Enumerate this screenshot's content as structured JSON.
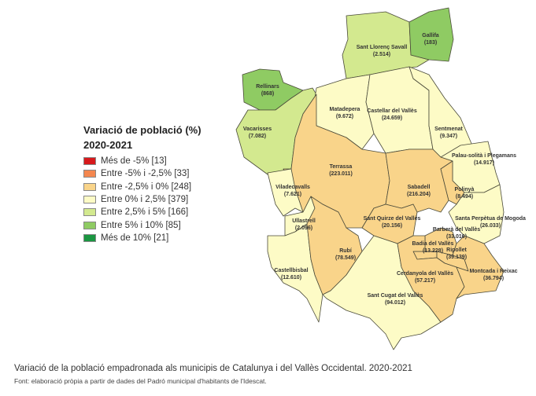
{
  "legend": {
    "title_line1": "Variació de població (%)",
    "title_line2": "2020-2021",
    "classes": [
      {
        "label": "Més de -5% [13]",
        "color": "#d7191c"
      },
      {
        "label": "Entre -5% i -2,5% [33]",
        "color": "#f4874f"
      },
      {
        "label": "Entre -2,5% i 0% [248]",
        "color": "#f9d48a"
      },
      {
        "label": "Entre 0% i 2,5% [379]",
        "color": "#fdfbc6"
      },
      {
        "label": "Entre 2,5% i 5% [166]",
        "color": "#d3e98f"
      },
      {
        "label": "Entre 5% i 10% [85]",
        "color": "#8fcb63"
      },
      {
        "label": "Més de 10%  [21]",
        "color": "#1a9641"
      }
    ]
  },
  "municipalities": [
    {
      "name": "Sant Llorenç Savall",
      "population": "(2.514)",
      "class": 4
    },
    {
      "name": "Gallifa",
      "population": "(183)",
      "class": 5
    },
    {
      "name": "Rellinars",
      "population": "(868)",
      "class": 5
    },
    {
      "name": "Vacarisses",
      "population": "(7.082)",
      "class": 4
    },
    {
      "name": "Matadepera",
      "population": "(9.672)",
      "class": 3
    },
    {
      "name": "Castellar del Vallès",
      "population": "(24.659)",
      "class": 3
    },
    {
      "name": "Sentmenat",
      "population": "(9.347)",
      "class": 3
    },
    {
      "name": "Palau-solità i Plegamans",
      "population": "(14.917)",
      "class": 3
    },
    {
      "name": "Terrassa",
      "population": "(223.011)",
      "class": 2
    },
    {
      "name": "Sabadell",
      "population": "(216.204)",
      "class": 2
    },
    {
      "name": "Polinyà",
      "population": "(8.494)",
      "class": 2
    },
    {
      "name": "Santa Perpètua de Mogoda",
      "population": "(26.033)",
      "class": 3
    },
    {
      "name": "Sant Quirze del Vallès",
      "population": "(20.156)",
      "class": 2
    },
    {
      "name": "Viladecavalls",
      "population": "(7.621)",
      "class": 3
    },
    {
      "name": "Ullastrell",
      "population": "(2.096)",
      "class": 3
    },
    {
      "name": "Castellbisbal",
      "population": "(12.610)",
      "class": 3
    },
    {
      "name": "Rubí",
      "population": "(78.549)",
      "class": 2
    },
    {
      "name": "Sant Cugat del Vallès",
      "population": "(94.012)",
      "class": 3
    },
    {
      "name": "Barberà del Vallès",
      "population": "(33.016)",
      "class": 2
    },
    {
      "name": "Badia del Vallès",
      "population": "(13.228)",
      "class": 2
    },
    {
      "name": "Ripollet",
      "population": "(39.139)",
      "class": 2
    },
    {
      "name": "Cerdanyola del Vallès",
      "population": "(57.217)",
      "class": 2
    },
    {
      "name": "Montcada i Reixac",
      "population": "(36.794)",
      "class": 2
    }
  ],
  "caption": "Variació de la població empadronada als municipis de Catalunya i del Vallès Occidental. 2020-2021",
  "source": "Font: elaboració pròpia a partir de dades del Padró municipal d'habitants de l'Idescat."
}
